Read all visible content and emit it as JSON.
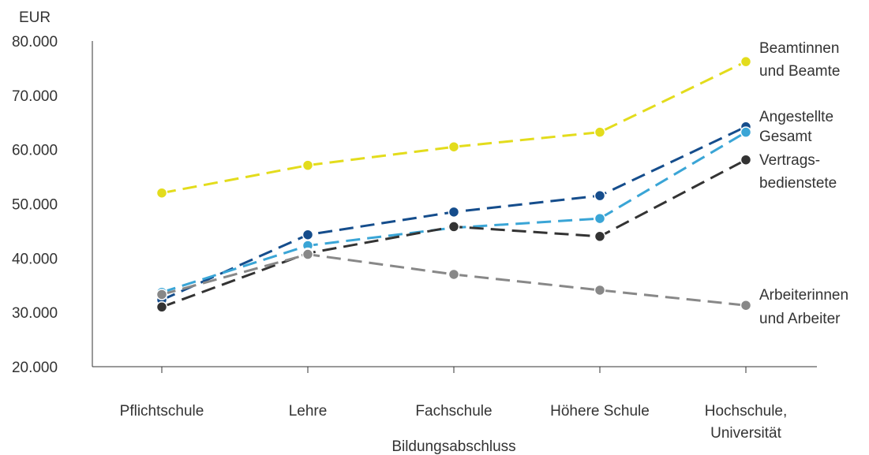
{
  "chart_data": {
    "type": "line",
    "title": "",
    "ylabel": "EUR",
    "xlabel": "Bildungsabschluss",
    "ylim": [
      20000,
      80000
    ],
    "yticks": [
      20000,
      30000,
      40000,
      50000,
      60000,
      70000,
      80000
    ],
    "ytick_labels": [
      "20.000",
      "30.000",
      "40.000",
      "50.000",
      "60.000",
      "70.000",
      "80.000"
    ],
    "categories": [
      [
        "Pflichtschule"
      ],
      [
        "Lehre"
      ],
      [
        "Fachschule"
      ],
      [
        "Höhere Schule"
      ],
      [
        "Hochschule,",
        "Universität"
      ]
    ],
    "grid": false,
    "legend": "direct labels at line ends",
    "series": [
      {
        "name": [
          "Beamtinnen",
          "und Beamte"
        ],
        "color": "#e3dc1c",
        "values": [
          52000,
          57100,
          60500,
          63200,
          76200
        ]
      },
      {
        "name": [
          "Angestellte"
        ],
        "color": "#154d8c",
        "values": [
          32300,
          44300,
          48500,
          51500,
          64200
        ]
      },
      {
        "name": [
          "Gesamt"
        ],
        "color": "#3aa5d6",
        "values": [
          33700,
          42300,
          45600,
          47300,
          63200
        ]
      },
      {
        "name": [
          "Vertrags-",
          "bedienstete"
        ],
        "color": "#333333",
        "values": [
          31000,
          40900,
          45800,
          44000,
          58100
        ]
      },
      {
        "name": [
          "Arbeiterinnen",
          "und Arbeiter"
        ],
        "color": "#888888",
        "values": [
          33300,
          40700,
          37000,
          34100,
          31300
        ]
      }
    ]
  }
}
